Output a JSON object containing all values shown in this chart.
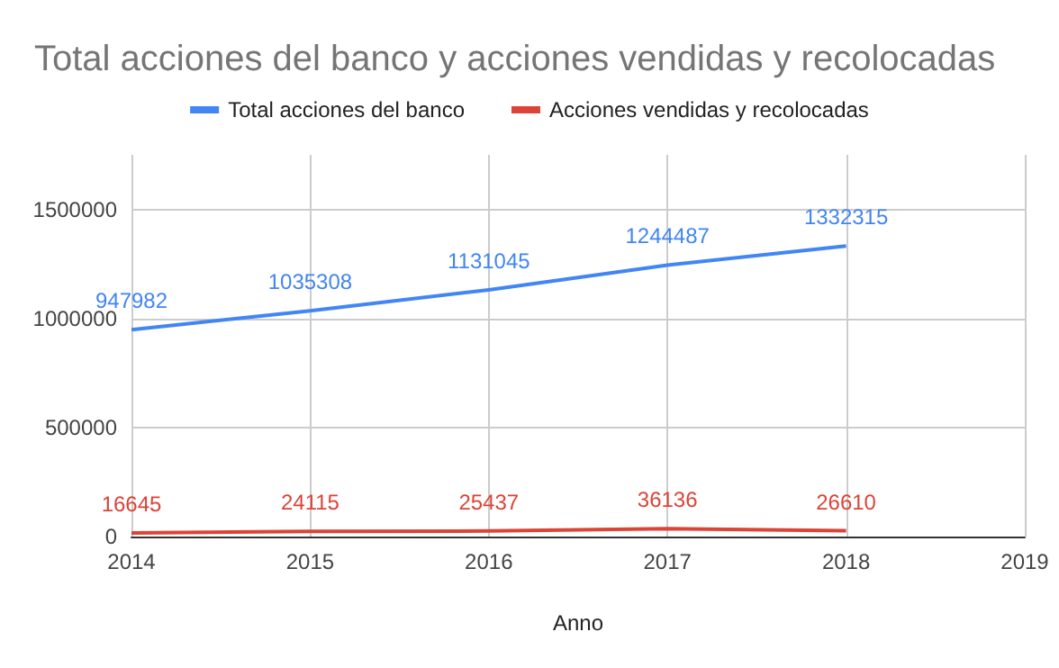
{
  "chart_data": {
    "type": "line",
    "title": "Total acciones del banco y acciones vendidas y recolocadas",
    "xlabel": "Anno",
    "x": [
      2014,
      2015,
      2016,
      2017,
      2018
    ],
    "series": [
      {
        "name": "Total acciones del banco",
        "color": "#4285f4",
        "values": [
          947982,
          1035308,
          1131045,
          1244487,
          1332315
        ]
      },
      {
        "name": "Acciones vendidas y recolocadas",
        "color": "#db4437",
        "values": [
          16645,
          24115,
          25437,
          36136,
          26610
        ]
      }
    ],
    "xlim": [
      2014,
      2019
    ],
    "xticks": [
      2014,
      2015,
      2016,
      2017,
      2018,
      2019
    ],
    "ylim": [
      0,
      1750000
    ],
    "yticks": [
      0,
      500000,
      1000000,
      1500000
    ],
    "grid": true,
    "legend": "top",
    "data_labels": true,
    "marker": "none",
    "line_style": "solid"
  }
}
